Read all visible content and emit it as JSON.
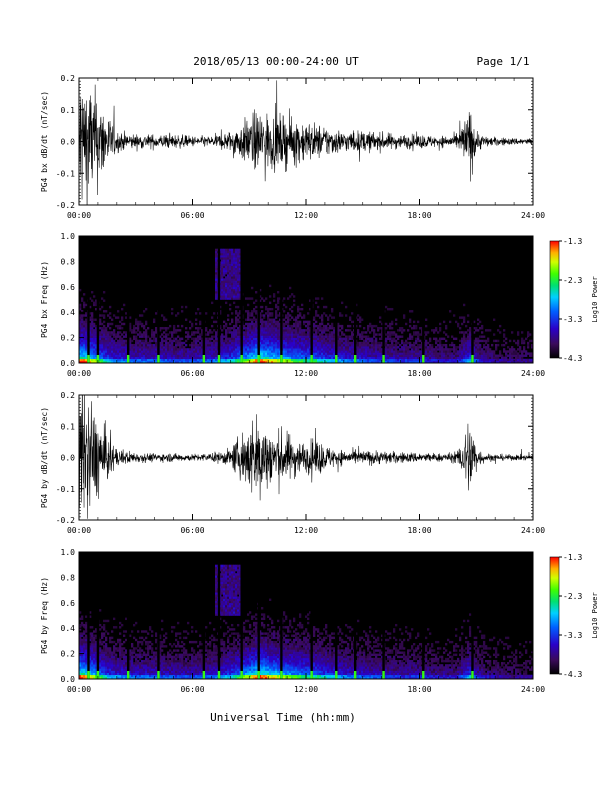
{
  "header": {
    "title": "2018/05/13  00:00-24:00 UT",
    "page": "Page 1/1"
  },
  "footer": {
    "xlabel": "Universal Time (hh:mm)"
  },
  "chart_data": [
    {
      "type": "line",
      "ylabel": "PG4 bx dB/dt (nT/sec)",
      "xlim": [
        0,
        24
      ],
      "ylim": [
        -0.2,
        0.2
      ],
      "x_ticks": [
        "00:00",
        "06:00",
        "12:00",
        "18:00",
        "24:00"
      ],
      "y_ticks": [
        "0.2",
        "0.1",
        "0.0",
        "-0.1",
        "-0.2"
      ],
      "envelope": {
        "hours": [
          0,
          0.5,
          1,
          1.5,
          2,
          3,
          4,
          5,
          6,
          7,
          8,
          9,
          9.5,
          10,
          11,
          12,
          12.5,
          13,
          14,
          15,
          16,
          17,
          18,
          19,
          20,
          20.7,
          21,
          21.5,
          22,
          23,
          24
        ],
        "amplitude": [
          0.22,
          0.18,
          0.13,
          0.08,
          0.03,
          0.02,
          0.02,
          0.02,
          0.015,
          0.015,
          0.03,
          0.07,
          0.09,
          0.08,
          0.07,
          0.06,
          0.05,
          0.045,
          0.03,
          0.03,
          0.025,
          0.02,
          0.02,
          0.015,
          0.02,
          0.1,
          0.03,
          0.015,
          0.012,
          0.01,
          0.01
        ]
      }
    },
    {
      "type": "heatmap",
      "ylabel": "PG4 bx Freq (Hz)",
      "xlim": [
        0,
        24
      ],
      "ylim": [
        0,
        1.0
      ],
      "x_ticks": [
        "00:00",
        "06:00",
        "12:00",
        "18:00",
        "24:00"
      ],
      "y_ticks": [
        "1.0",
        "0.8",
        "0.6",
        "0.4",
        "0.2",
        "0.0"
      ],
      "colorbar": {
        "label": "Log10 Power",
        "ticks": [
          "-1.3",
          "-2.3",
          "-3.3",
          "-4.3"
        ],
        "range": [
          -4.3,
          -1.3
        ]
      },
      "spike_hours": [
        0.5,
        1.0,
        2.6,
        4.2,
        6.6,
        7.4,
        8.6,
        9.5,
        10.7,
        12.3,
        13.6,
        14.6,
        16.1,
        18.2,
        20.8
      ]
    },
    {
      "type": "line",
      "ylabel": "PG4 by dB/dt (nT/sec)",
      "xlim": [
        0,
        24
      ],
      "ylim": [
        -0.2,
        0.2
      ],
      "x_ticks": [
        "00:00",
        "06:00",
        "12:00",
        "18:00",
        "24:00"
      ],
      "y_ticks": [
        "0.2",
        "0.1",
        "0.0",
        "-0.1",
        "-0.2"
      ],
      "envelope": {
        "hours": [
          0,
          0.5,
          1,
          1.5,
          2,
          3,
          4,
          5,
          6,
          7,
          8,
          9,
          9.5,
          10,
          11,
          12,
          12.5,
          13,
          14,
          15,
          16,
          17,
          18,
          19,
          20,
          20.7,
          21,
          21.5,
          22,
          23,
          24
        ],
        "amplitude": [
          0.2,
          0.17,
          0.12,
          0.07,
          0.025,
          0.015,
          0.012,
          0.012,
          0.01,
          0.012,
          0.025,
          0.1,
          0.13,
          0.09,
          0.07,
          0.04,
          0.06,
          0.035,
          0.02,
          0.02,
          0.02,
          0.015,
          0.015,
          0.012,
          0.015,
          0.13,
          0.03,
          0.012,
          0.01,
          0.008,
          0.008
        ]
      }
    },
    {
      "type": "heatmap",
      "ylabel": "PG4 by Freq (Hz)",
      "xlim": [
        0,
        24
      ],
      "ylim": [
        0,
        1.0
      ],
      "x_ticks": [
        "00:00",
        "06:00",
        "12:00",
        "18:00",
        "24:00"
      ],
      "y_ticks": [
        "1.0",
        "0.8",
        "0.6",
        "0.4",
        "0.2",
        "0.0"
      ],
      "colorbar": {
        "label": "Log10 Power",
        "ticks": [
          "-1.3",
          "-2.3",
          "-3.3",
          "-4.3"
        ],
        "range": [
          -4.3,
          -1.3
        ]
      },
      "spike_hours": [
        0.5,
        1.0,
        2.6,
        4.2,
        6.6,
        7.4,
        8.6,
        9.5,
        10.7,
        12.3,
        13.6,
        14.6,
        16.1,
        18.2,
        20.8
      ]
    }
  ]
}
